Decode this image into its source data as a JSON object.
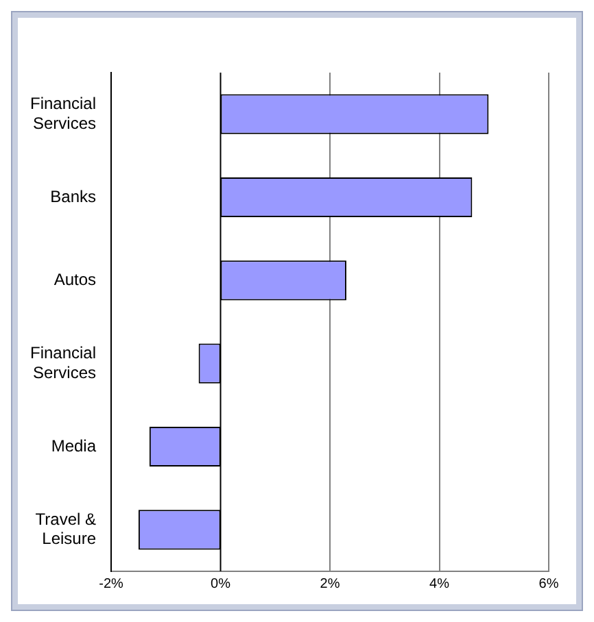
{
  "chart_data": {
    "type": "bar",
    "orientation": "horizontal",
    "categories": [
      "Financial Services",
      "Banks",
      "Autos",
      "Financial Services",
      "Media",
      "Travel & Leisure"
    ],
    "values": [
      4.9,
      4.6,
      2.3,
      -0.4,
      -1.3,
      -1.5
    ],
    "color": "#9999ff",
    "xlim": [
      -2,
      6
    ],
    "xticks": [
      {
        "value": -2,
        "label": "-2%"
      },
      {
        "value": 0,
        "label": "0%"
      },
      {
        "value": 2,
        "label": "2%"
      },
      {
        "value": 4,
        "label": "4%"
      },
      {
        "value": 6,
        "label": "6%"
      }
    ],
    "grid": "x",
    "legend": false
  }
}
